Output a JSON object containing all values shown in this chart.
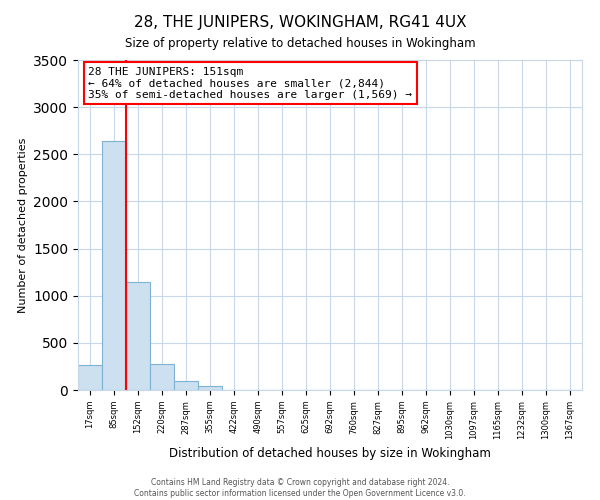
{
  "title": "28, THE JUNIPERS, WOKINGHAM, RG41 4UX",
  "subtitle": "Size of property relative to detached houses in Wokingham",
  "xlabel": "Distribution of detached houses by size in Wokingham",
  "ylabel": "Number of detached properties",
  "bar_labels": [
    "17sqm",
    "85sqm",
    "152sqm",
    "220sqm",
    "287sqm",
    "355sqm",
    "422sqm",
    "490sqm",
    "557sqm",
    "625sqm",
    "692sqm",
    "760sqm",
    "827sqm",
    "895sqm",
    "962sqm",
    "1030sqm",
    "1097sqm",
    "1165sqm",
    "1232sqm",
    "1300sqm",
    "1367sqm"
  ],
  "bar_values": [
    270,
    2640,
    1150,
    280,
    100,
    40,
    0,
    0,
    0,
    0,
    0,
    0,
    0,
    0,
    0,
    0,
    0,
    0,
    0,
    0,
    0
  ],
  "bar_color": "#cce0f0",
  "bar_edge_color": "#7fb3d3",
  "property_line_color": "red",
  "property_line_index": 2,
  "ylim": [
    0,
    3500
  ],
  "yticks": [
    0,
    500,
    1000,
    1500,
    2000,
    2500,
    3000,
    3500
  ],
  "annotation_title": "28 THE JUNIPERS: 151sqm",
  "annotation_line1": "← 64% of detached houses are smaller (2,844)",
  "annotation_line2": "35% of semi-detached houses are larger (1,569) →",
  "footer_line1": "Contains HM Land Registry data © Crown copyright and database right 2024.",
  "footer_line2": "Contains public sector information licensed under the Open Government Licence v3.0.",
  "background_color": "#ffffff",
  "grid_color": "#c8d8e8"
}
